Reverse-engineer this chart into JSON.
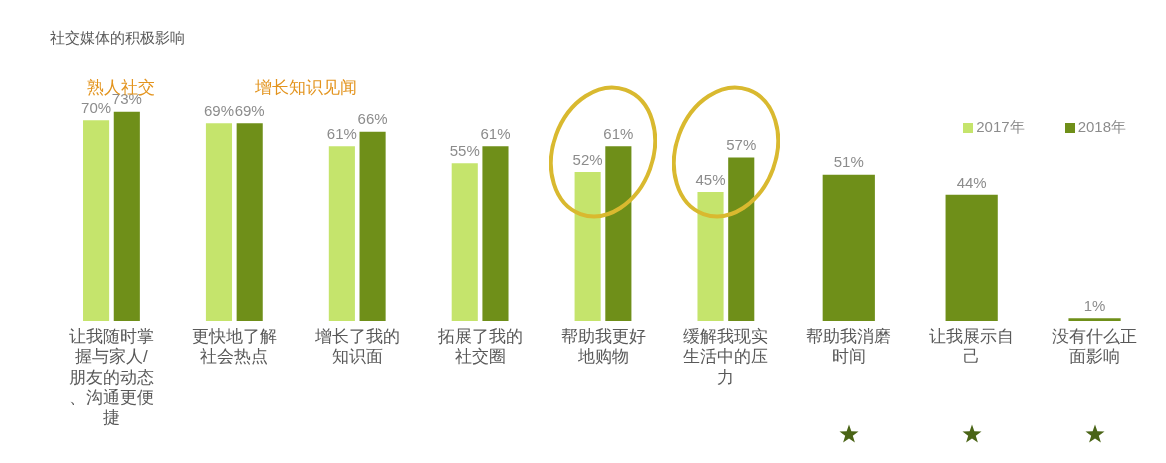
{
  "chart_data": {
    "type": "bar",
    "title": "社交媒体的积极影响",
    "categories": [
      "让我随时掌握与家人/朋友的动态、沟通更便捷",
      "更快地了解社会热点",
      "增长了我的知识面",
      "拓展了我的社交圈",
      "帮助我更好地购物",
      "缓解我现实生活中的压力",
      "帮助我消磨时间",
      "让我展示自己",
      "没有什么正面影响"
    ],
    "series": [
      {
        "name": "2017年",
        "color": "#c5e46c",
        "values": [
          70,
          69,
          61,
          55,
          52,
          45,
          null,
          null,
          null
        ],
        "value_labels": [
          "70%",
          "69%",
          "61%",
          "55%",
          "52%",
          "45%",
          null,
          null,
          null
        ]
      },
      {
        "name": "2018年",
        "color": "#6f8f19",
        "values": [
          73,
          69,
          66,
          61,
          61,
          57,
          51,
          44,
          1
        ],
        "value_labels": [
          "73%",
          "69%",
          "66%",
          "61%",
          "61%",
          "57%",
          "51%",
          "44%",
          "1%"
        ]
      }
    ],
    "legend": "top right",
    "grid": false,
    "annotations": [
      "熟人社交",
      "增长知识见闻"
    ]
  }
}
